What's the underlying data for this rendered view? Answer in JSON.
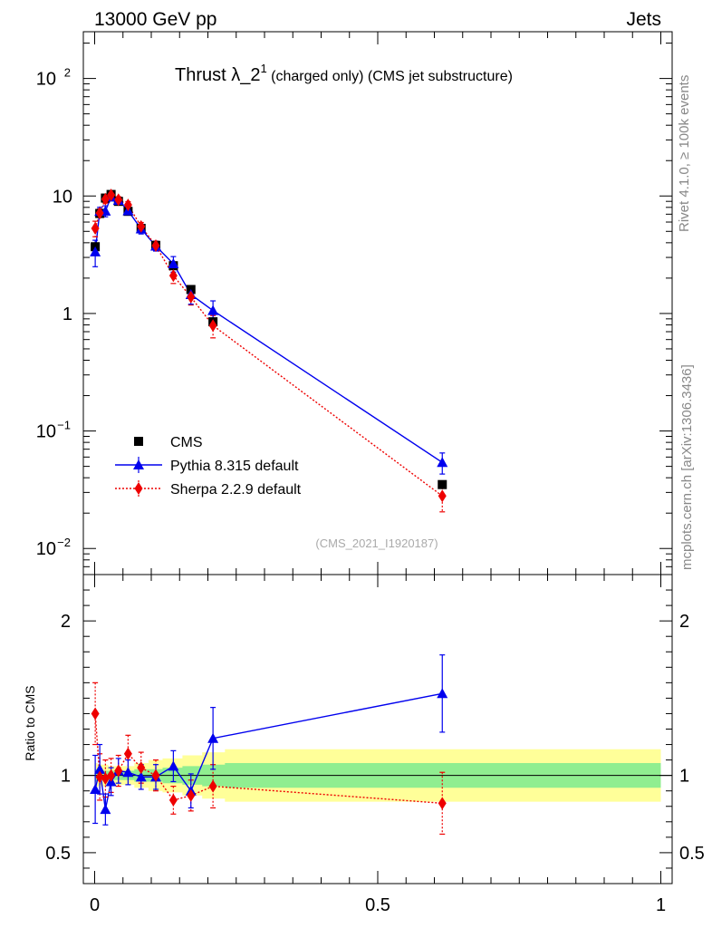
{
  "header": {
    "left": "13000 GeV pp",
    "right": "Jets"
  },
  "side_labels": {
    "rivet": "Rivet 4.1.0, ≥ 100k events",
    "mcplots": "mcplots.cern.ch [arXiv:1306.3436]"
  },
  "title": {
    "main": "Thrust λ_2",
    "sup": "1",
    "rest": " (charged only) (CMS jet substructure)"
  },
  "analysis_id": "(CMS_2021_I1920187)",
  "ratio_ylabel": "Ratio to CMS",
  "chart_data": {
    "type": "scatter",
    "main": {
      "yscale": "log",
      "ylim": [
        0.006,
        250
      ],
      "xlim": [
        -0.02,
        1.02
      ],
      "yticks": [
        {
          "v": 0.01,
          "m": "10",
          "e": "−2"
        },
        {
          "v": 0.1,
          "m": "10",
          "e": "−1"
        },
        {
          "v": 1,
          "m": "1",
          "e": ""
        },
        {
          "v": 10,
          "m": "10",
          "e": ""
        },
        {
          "v": 100,
          "m": "10",
          "e": "2"
        }
      ]
    },
    "ratio": {
      "ylim": [
        0.3,
        2.3
      ],
      "yticks": [
        {
          "v": 0.5,
          "label": "0.5"
        },
        {
          "v": 1,
          "label": "1"
        },
        {
          "v": 2,
          "label": "2"
        }
      ]
    },
    "xticks": [
      {
        "v": 0,
        "label": "0"
      },
      {
        "v": 0.5,
        "label": "0.5"
      },
      {
        "v": 1,
        "label": "1"
      }
    ],
    "legend": [
      {
        "key": "cms",
        "label": "CMS"
      },
      {
        "key": "pythia",
        "label": "Pythia 8.315 default"
      },
      {
        "key": "sherpa",
        "label": "Sherpa 2.2.9 default"
      }
    ],
    "colors": {
      "cms": "#000000",
      "pythia": "#0000ee",
      "sherpa": "#ee0000",
      "band_stat": "#90ee90",
      "band_sys": "#ffff99"
    },
    "cms": {
      "x": [
        0.001,
        0.009,
        0.019,
        0.029,
        0.042,
        0.059,
        0.082,
        0.108,
        0.139,
        0.17,
        0.209,
        0.614
      ],
      "y": [
        3.7,
        7.1,
        9.6,
        10.3,
        9.0,
        7.4,
        5.3,
        3.8,
        2.55,
        1.6,
        0.85,
        0.035
      ]
    },
    "pythia": {
      "x": [
        0.001,
        0.009,
        0.019,
        0.029,
        0.042,
        0.059,
        0.082,
        0.108,
        0.139,
        0.17,
        0.209,
        0.614
      ],
      "y": [
        3.35,
        7.4,
        7.45,
        9.8,
        9.2,
        7.5,
        5.25,
        3.75,
        2.65,
        1.45,
        1.06,
        0.054
      ],
      "err": [
        0.85,
        0.6,
        0.8,
        0.7,
        0.5,
        0.55,
        0.5,
        0.35,
        0.4,
        0.25,
        0.22,
        0.011
      ]
    },
    "sherpa": {
      "x": [
        0.001,
        0.009,
        0.019,
        0.029,
        0.042,
        0.059,
        0.082,
        0.108,
        0.139,
        0.17,
        0.209,
        0.614
      ],
      "y": [
        5.3,
        7.15,
        9.4,
        10.2,
        9.3,
        8.4,
        5.5,
        3.78,
        2.1,
        1.38,
        0.79,
        0.028
      ],
      "err": [
        0.8,
        0.6,
        0.7,
        0.7,
        0.55,
        0.55,
        0.45,
        0.35,
        0.3,
        0.2,
        0.17,
        0.0075
      ]
    },
    "ratio_pythia": {
      "y": [
        0.91,
        1.04,
        0.78,
        0.96,
        1.03,
        1.02,
        0.99,
        0.99,
        1.06,
        0.9,
        1.24,
        1.53
      ],
      "err": [
        0.22,
        0.16,
        0.1,
        0.09,
        0.08,
        0.08,
        0.08,
        0.08,
        0.1,
        0.11,
        0.2,
        0.25
      ]
    },
    "ratio_sherpa": {
      "y": [
        1.4,
        0.99,
        0.98,
        1.0,
        1.03,
        1.14,
        1.05,
        1.0,
        0.84,
        0.87,
        0.93,
        0.82
      ],
      "err": [
        0.2,
        0.15,
        0.12,
        0.11,
        0.1,
        0.12,
        0.1,
        0.1,
        0.09,
        0.1,
        0.14,
        0.2
      ]
    },
    "bands": {
      "x": [
        0.0,
        0.005,
        0.014,
        0.024,
        0.034,
        0.05,
        0.07,
        0.095,
        0.12,
        0.155,
        0.19,
        0.23,
        1.0
      ],
      "stat": [
        0.04,
        0.03,
        0.03,
        0.03,
        0.03,
        0.03,
        0.04,
        0.04,
        0.05,
        0.06,
        0.07,
        0.08
      ],
      "sys": [
        0.08,
        0.07,
        0.07,
        0.06,
        0.06,
        0.06,
        0.08,
        0.1,
        0.11,
        0.13,
        0.15,
        0.17
      ]
    }
  }
}
